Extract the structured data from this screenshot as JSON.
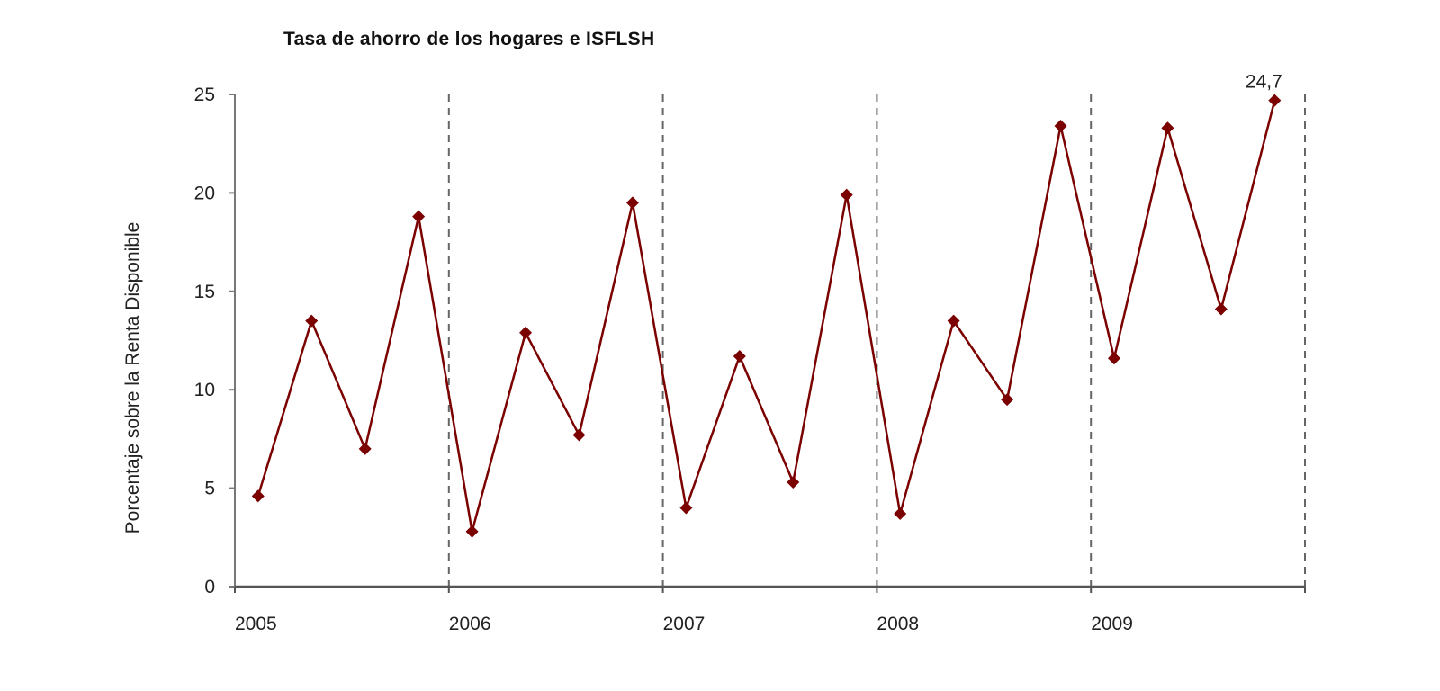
{
  "chart_data": {
    "type": "line",
    "title": "Tasa de ahorro de los hogares e ISFLSH",
    "xlabel": "",
    "ylabel": "Porcentaje sobre la Renta Disponible",
    "ylim": [
      0,
      25
    ],
    "yticks": [
      0,
      5,
      10,
      15,
      20,
      25
    ],
    "x_tick_labels": [
      "2005",
      "2006",
      "2007",
      "2008",
      "2009"
    ],
    "grid": "vertical dashed lines at year boundaries",
    "x": [
      "2005Q1",
      "2005Q2",
      "2005Q3",
      "2005Q4",
      "2006Q1",
      "2006Q2",
      "2006Q3",
      "2006Q4",
      "2007Q1",
      "2007Q2",
      "2007Q3",
      "2007Q4",
      "2008Q1",
      "2008Q2",
      "2008Q3",
      "2008Q4",
      "2009Q1",
      "2009Q2",
      "2009Q3",
      "2009Q4"
    ],
    "series": [
      {
        "name": "Tasa de ahorro",
        "color": "#7b0000",
        "marker": "diamond",
        "values": [
          4.6,
          13.5,
          7.0,
          18.8,
          2.8,
          12.9,
          7.7,
          19.5,
          4.0,
          11.7,
          5.3,
          19.9,
          3.7,
          13.5,
          9.5,
          23.4,
          11.6,
          23.3,
          14.1,
          24.7
        ]
      }
    ],
    "annotations": [
      {
        "point_index": 19,
        "text": "24,7"
      }
    ]
  }
}
